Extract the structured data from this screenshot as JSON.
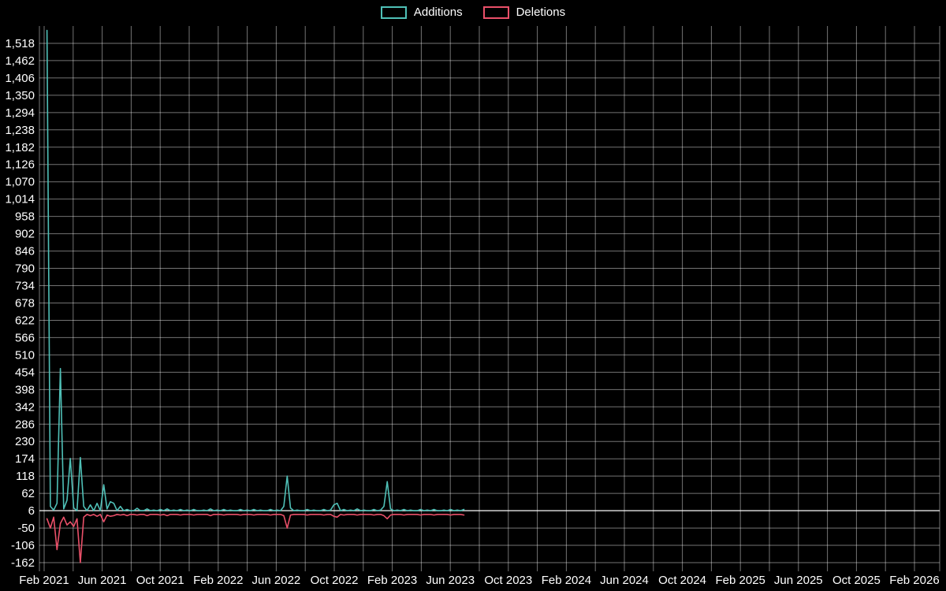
{
  "chart_data": {
    "type": "line",
    "title": "",
    "background_color": "#000000",
    "grid": true,
    "grid_color": "rgba(255,255,255,0.45)",
    "baseline_color": "rgba(255,255,255,0.9)",
    "text_color": "#ffffff",
    "legend_position": "top-center",
    "x_axis_labels": [
      "Feb 2021",
      "Jun 2021",
      "Oct 2021",
      "Feb 2022",
      "Jun 2022",
      "Oct 2022",
      "Feb 2023",
      "Jun 2023",
      "Oct 2023",
      "Feb 2024",
      "Jun 2024",
      "Oct 2024",
      "Feb 2025",
      "Jun 2025",
      "Oct 2025",
      "Feb 2026"
    ],
    "x_tick_interval_months": 4,
    "x_range": [
      "2021-02",
      "2026-03"
    ],
    "y_ticks": [
      -162,
      -106,
      -50,
      6,
      62,
      118,
      174,
      230,
      286,
      342,
      398,
      454,
      510,
      566,
      622,
      678,
      734,
      790,
      846,
      902,
      958,
      1014,
      1070,
      1126,
      1182,
      1238,
      1294,
      1350,
      1406,
      1462,
      1518
    ],
    "y_baseline": 6,
    "ylim": [
      -190,
      1574
    ],
    "points_start_date": "2021-02-07",
    "points_interval_days": 7,
    "series": [
      {
        "name": "Additions",
        "color": "#4fc0b7",
        "values": [
          1560,
          20,
          8,
          30,
          466,
          12,
          40,
          175,
          15,
          6,
          178,
          20,
          6,
          25,
          6,
          30,
          6,
          90,
          12,
          35,
          30,
          6,
          20,
          6,
          10,
          6,
          6,
          14,
          6,
          6,
          12,
          6,
          8,
          6,
          10,
          6,
          12,
          6,
          8,
          6,
          10,
          6,
          8,
          6,
          10,
          6,
          6,
          8,
          6,
          12,
          6,
          8,
          6,
          10,
          6,
          8,
          6,
          6,
          10,
          6,
          8,
          6,
          10,
          6,
          8,
          6,
          6,
          10,
          6,
          8,
          6,
          20,
          118,
          15,
          6,
          8,
          6,
          6,
          10,
          6,
          8,
          6,
          6,
          10,
          6,
          8,
          25,
          30,
          6,
          10,
          6,
          8,
          6,
          12,
          6,
          8,
          6,
          6,
          10,
          6,
          8,
          20,
          100,
          12,
          6,
          8,
          6,
          10,
          6,
          8,
          6,
          6,
          10,
          6,
          8,
          6,
          10,
          6,
          6,
          8,
          6,
          10,
          6,
          8,
          6,
          10
        ]
      },
      {
        "name": "Deletions",
        "color": "#ea5069",
        "values": [
          -20,
          -50,
          -15,
          -120,
          -35,
          -15,
          -40,
          -30,
          -45,
          -20,
          -162,
          -15,
          -6,
          -10,
          -6,
          -12,
          -6,
          -30,
          -8,
          -12,
          -10,
          -6,
          -8,
          -6,
          -10,
          -6,
          -6,
          -8,
          -6,
          -6,
          -10,
          -6,
          -6,
          -6,
          -8,
          -6,
          -10,
          -6,
          -6,
          -6,
          -8,
          -6,
          -6,
          -6,
          -8,
          -6,
          -6,
          -6,
          -6,
          -10,
          -6,
          -6,
          -6,
          -8,
          -6,
          -6,
          -6,
          -6,
          -8,
          -6,
          -6,
          -6,
          -8,
          -6,
          -6,
          -6,
          -6,
          -8,
          -6,
          -6,
          -6,
          -10,
          -50,
          -8,
          -6,
          -6,
          -6,
          -6,
          -8,
          -6,
          -6,
          -6,
          -6,
          -8,
          -6,
          -6,
          -12,
          -15,
          -6,
          -8,
          -6,
          -6,
          -6,
          -8,
          -6,
          -6,
          -6,
          -6,
          -8,
          -6,
          -6,
          -10,
          -20,
          -8,
          -6,
          -6,
          -6,
          -8,
          -6,
          -6,
          -6,
          -6,
          -8,
          -6,
          -6,
          -6,
          -8,
          -6,
          -6,
          -6,
          -6,
          -8,
          -6,
          -6,
          -6,
          -8
        ]
      }
    ]
  }
}
